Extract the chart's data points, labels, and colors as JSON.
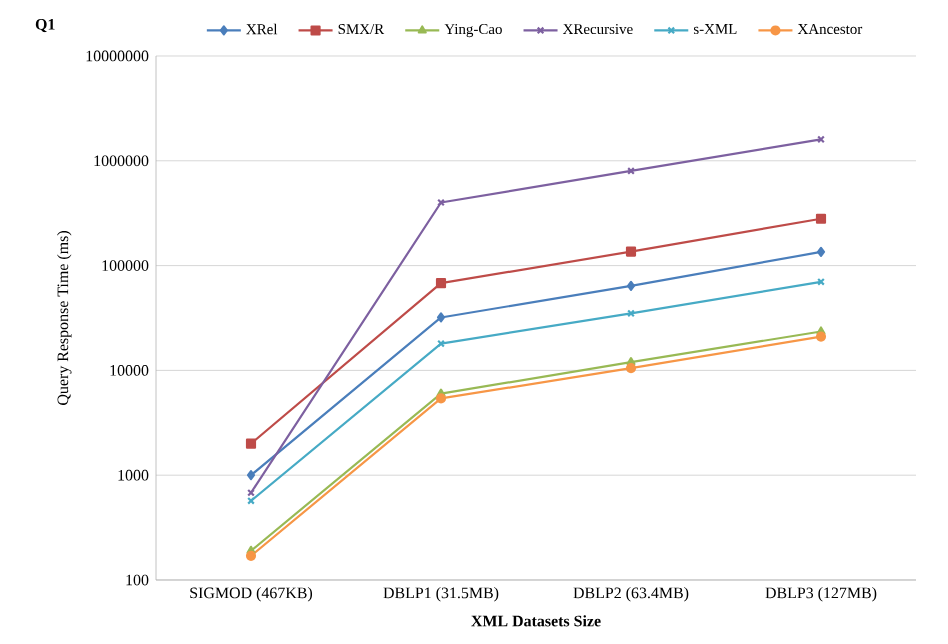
{
  "chart_data": {
    "type": "line",
    "title": "Q1",
    "xlabel": "XML Datasets Size",
    "ylabel": "Query Response Time (ms)",
    "categories": [
      "SIGMOD (467KB)",
      "DBLP1 (31.5MB)",
      "DBLP2 (63.4MB)",
      "DBLP3 (127MB)"
    ],
    "series": [
      {
        "name": "XRel",
        "color": "#4a7ebb",
        "marker": "diamond",
        "values": [
          1000,
          32000,
          64000,
          135000
        ]
      },
      {
        "name": "SMX/R",
        "color": "#be4b48",
        "marker": "square",
        "values": [
          2000,
          68000,
          136000,
          280000
        ]
      },
      {
        "name": "Ying-Cao",
        "color": "#98b954",
        "marker": "triangle",
        "values": [
          190,
          6000,
          12000,
          23500
        ]
      },
      {
        "name": "XRecursive",
        "color": "#7d60a0",
        "marker": "cross",
        "values": [
          680,
          400000,
          800000,
          1600000
        ]
      },
      {
        "name": "s-XML",
        "color": "#46aac5",
        "marker": "cross",
        "values": [
          570,
          18000,
          35000,
          70000
        ]
      },
      {
        "name": "XAncestor",
        "color": "#f79646",
        "marker": "circle",
        "values": [
          170,
          5400,
          10500,
          21000
        ]
      }
    ],
    "log": "y",
    "ylim": [
      100,
      10000000
    ],
    "yticks": [
      100,
      1000,
      10000,
      100000,
      1000000,
      10000000
    ],
    "grid": "y",
    "legend": "top"
  }
}
